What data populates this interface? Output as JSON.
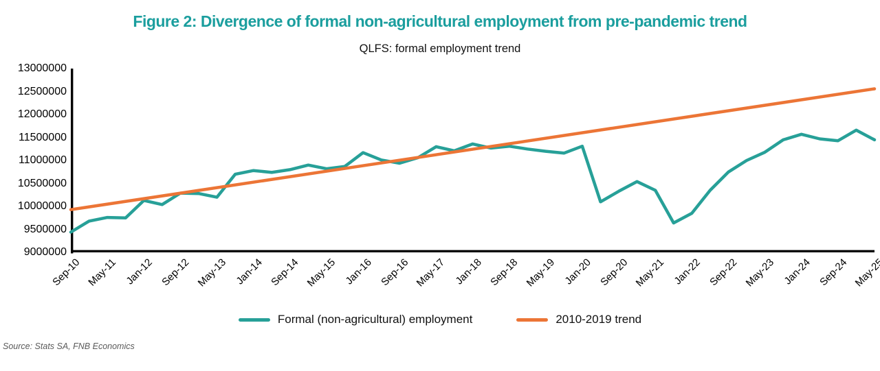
{
  "title": "Figure 2: Divergence of formal non-agricultural employment from pre-pandemic trend",
  "subtitle": "QLFS: formal employment trend",
  "source": "Source: Stats SA, FNB Economics",
  "colors": {
    "title_text": "#1b9e9e",
    "employment_line": "#27a098",
    "trend_line": "#ec7536",
    "axis": "#000000",
    "source_text": "#5a5a5a"
  },
  "legend": [
    {
      "label": "Formal (non-agricultural) employment",
      "color": "#27a098"
    },
    {
      "label": "2010-2019 trend",
      "color": "#ec7536"
    }
  ],
  "chart_data": {
    "type": "line",
    "title": "QLFS: formal employment trend",
    "xlabel": "",
    "ylabel": "",
    "ylim": [
      9000000,
      13000000
    ],
    "grid": false,
    "legend_position": "bottom",
    "y_tick_labels": [
      "13000000",
      "12500000",
      "12000000",
      "11500000",
      "11000000",
      "10500000",
      "10000000",
      "9500000",
      "9000000"
    ],
    "x_tick_labels": [
      "Sep-10",
      "May-11",
      "Jan-12",
      "Sep-12",
      "May-13",
      "Jan-14",
      "Sep-14",
      "May-15",
      "Jan-16",
      "Sep-16",
      "May-17",
      "Jan-18",
      "Sep-18",
      "May-19",
      "Jan-20",
      "Sep-20",
      "May-21",
      "Jan-22",
      "Sep-22",
      "May-23",
      "Jan-24",
      "Sep-24",
      "May-25"
    ],
    "points_per_x_label": 2,
    "series": [
      {
        "name": "Formal (non-agricultural) employment",
        "color": "#27a098",
        "values": [
          9440000,
          9680000,
          9760000,
          9750000,
          10130000,
          10040000,
          10290000,
          10280000,
          10200000,
          10700000,
          10780000,
          10740000,
          10800000,
          10900000,
          10820000,
          10870000,
          11170000,
          11010000,
          10940000,
          11060000,
          11300000,
          11210000,
          11360000,
          11270000,
          11310000,
          11250000,
          11200000,
          11160000,
          11310000,
          10100000,
          10330000,
          10540000,
          10350000,
          9640000,
          9850000,
          10350000,
          10750000,
          11000000,
          11180000,
          11450000,
          11570000,
          11470000,
          11430000,
          11660000,
          11450000
        ]
      },
      {
        "name": "2010-2019 trend",
        "color": "#ec7536",
        "values": [
          9930000,
          12560000
        ]
      }
    ]
  }
}
